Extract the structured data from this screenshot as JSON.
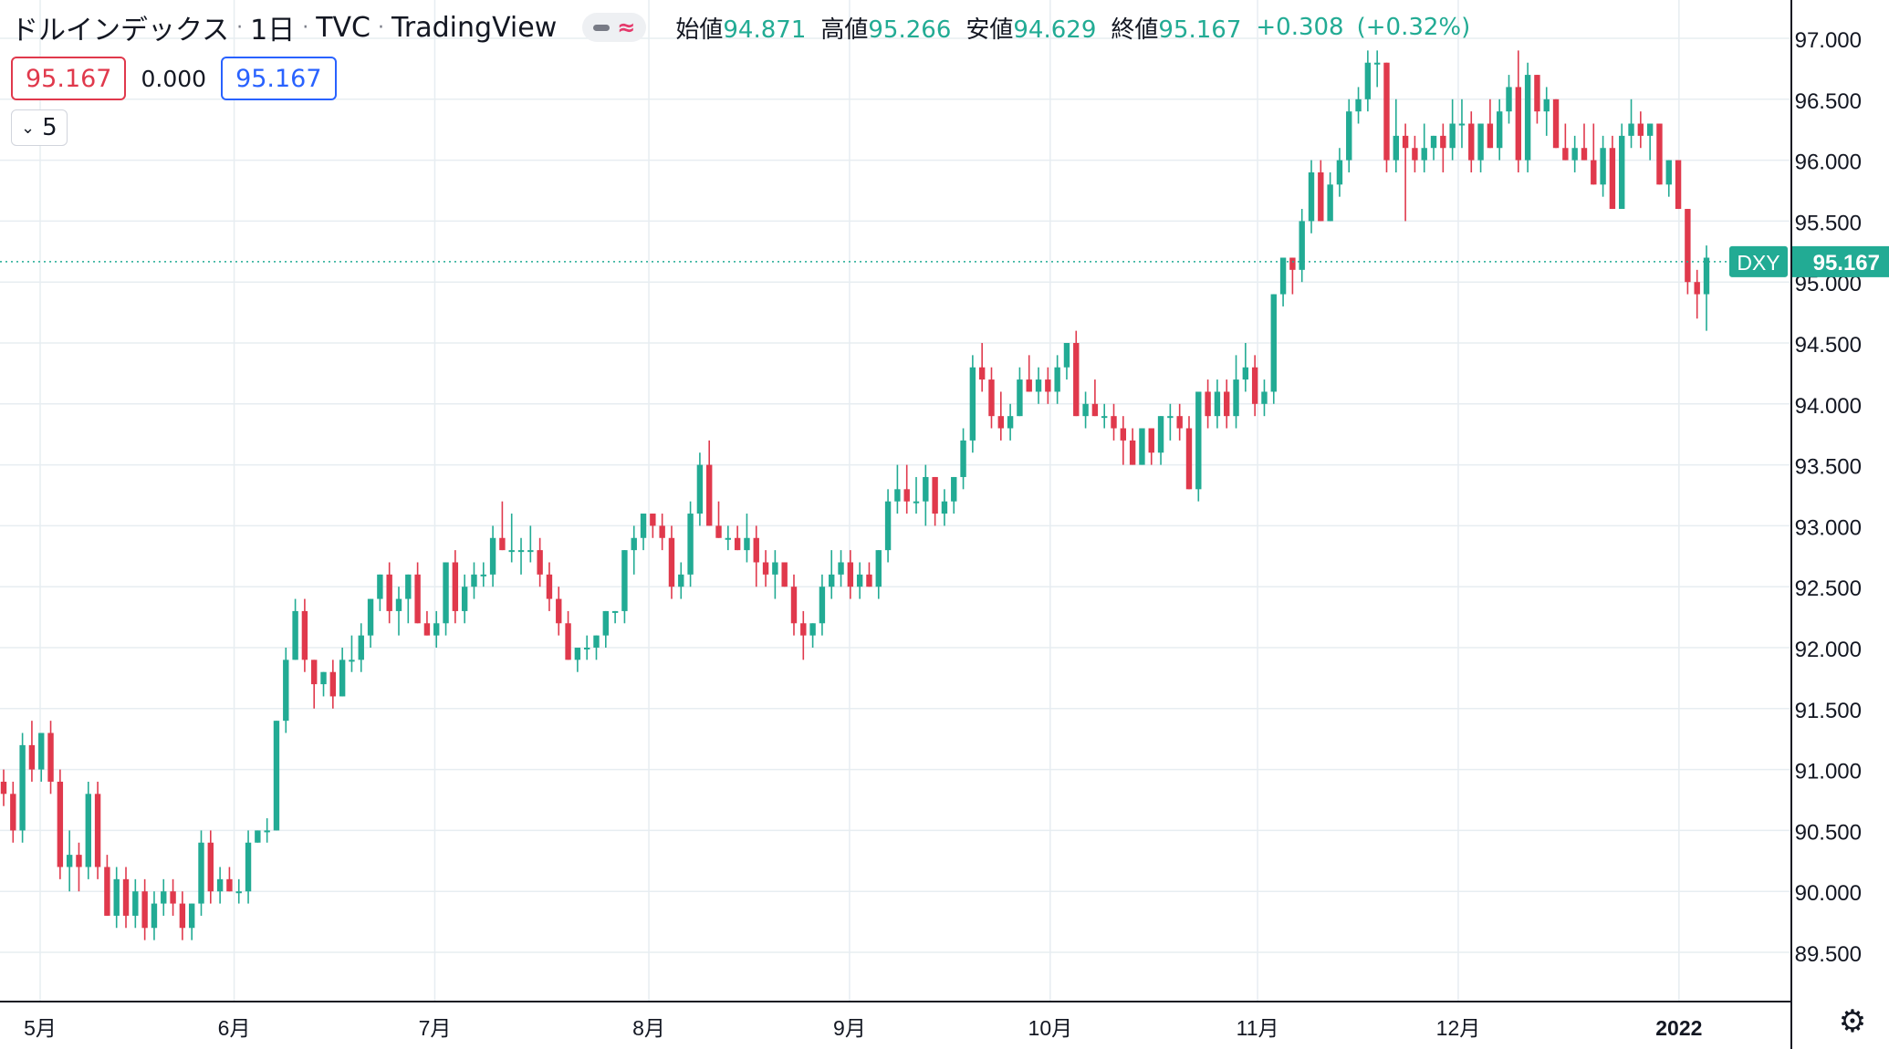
{
  "header": {
    "symbol": "ドルインデックス",
    "interval": "1日",
    "exchange": "TVC",
    "provider": "TradingView",
    "open_label": "始値",
    "open": "94.871",
    "high_label": "高値",
    "high": "95.266",
    "low_label": "安値",
    "low": "94.629",
    "close_label": "終値",
    "close": "95.167",
    "change": "+0.308",
    "change_pct": "(+0.32%)"
  },
  "price_boxes": {
    "sell": "95.167",
    "spread": "0.000",
    "buy": "95.167"
  },
  "indicators_toggle": {
    "count": "5"
  },
  "colors": {
    "up": "#22ab94",
    "down": "#e0394c",
    "grid": "#e7edf1",
    "axis": "#131722",
    "price_line": "#22ab94"
  },
  "icons": {
    "chevron": "chevron-down-icon",
    "settings": "gear-icon",
    "line": "line-style-icon",
    "compare": "approx-icon"
  },
  "chart_data": {
    "type": "candlestick",
    "title": "ドルインデックス · 1日 · TVC",
    "ylim": [
      89.2,
      97.2
    ],
    "y_ticks": [
      "89.500",
      "90.000",
      "90.500",
      "91.000",
      "91.500",
      "92.000",
      "92.500",
      "93.000",
      "93.500",
      "94.000",
      "94.500",
      "95.000",
      "95.500",
      "96.000",
      "96.500",
      "97.000"
    ],
    "x_ticks": [
      {
        "label": "5月",
        "date": "2021-05-03"
      },
      {
        "label": "6月",
        "date": "2021-06-01"
      },
      {
        "label": "7月",
        "date": "2021-07-01"
      },
      {
        "label": "8月",
        "date": "2021-08-02"
      },
      {
        "label": "9月",
        "date": "2021-09-01"
      },
      {
        "label": "10月",
        "date": "2021-10-01"
      },
      {
        "label": "11月",
        "date": "2021-11-01"
      },
      {
        "label": "12月",
        "date": "2021-12-01"
      },
      {
        "label": "2022",
        "date": "2022-01-03"
      }
    ],
    "last_price": {
      "symbol": "DXY",
      "value": 95.167
    },
    "grid": true,
    "ohlc": [
      [
        90.9,
        91.0,
        90.7,
        90.8
      ],
      [
        90.8,
        90.9,
        90.4,
        90.5
      ],
      [
        90.5,
        91.3,
        90.4,
        91.2
      ],
      [
        91.2,
        91.4,
        90.9,
        91.0
      ],
      [
        91.0,
        91.3,
        90.9,
        91.3
      ],
      [
        91.3,
        91.4,
        90.8,
        90.9
      ],
      [
        90.9,
        91.0,
        90.1,
        90.2
      ],
      [
        90.2,
        90.5,
        90.0,
        90.3
      ],
      [
        90.3,
        90.4,
        90.0,
        90.2
      ],
      [
        90.2,
        90.9,
        90.1,
        90.8
      ],
      [
        90.8,
        90.9,
        90.1,
        90.2
      ],
      [
        90.2,
        90.3,
        89.8,
        89.8
      ],
      [
        89.8,
        90.2,
        89.7,
        90.1
      ],
      [
        90.1,
        90.2,
        89.7,
        89.8
      ],
      [
        89.8,
        90.1,
        89.7,
        90.0
      ],
      [
        90.0,
        90.1,
        89.6,
        89.7
      ],
      [
        89.7,
        90.0,
        89.6,
        89.9
      ],
      [
        89.9,
        90.1,
        89.8,
        90.0
      ],
      [
        90.0,
        90.1,
        89.8,
        89.9
      ],
      [
        89.9,
        90.0,
        89.6,
        89.7
      ],
      [
        89.7,
        89.9,
        89.6,
        89.9
      ],
      [
        89.9,
        90.5,
        89.8,
        90.4
      ],
      [
        90.4,
        90.5,
        89.9,
        90.0
      ],
      [
        90.0,
        90.2,
        89.9,
        90.1
      ],
      [
        90.1,
        90.2,
        90.0,
        90.0
      ],
      [
        90.0,
        90.1,
        89.9,
        90.0
      ],
      [
        90.0,
        90.5,
        89.9,
        90.4
      ],
      [
        90.4,
        90.5,
        90.4,
        90.5
      ],
      [
        90.5,
        90.6,
        90.4,
        90.5
      ],
      [
        90.5,
        91.4,
        90.5,
        91.4
      ],
      [
        91.4,
        92.0,
        91.3,
        91.9
      ],
      [
        91.9,
        92.4,
        91.9,
        92.3
      ],
      [
        92.3,
        92.4,
        91.8,
        91.9
      ],
      [
        91.9,
        91.9,
        91.5,
        91.7
      ],
      [
        91.7,
        91.8,
        91.6,
        91.8
      ],
      [
        91.8,
        91.9,
        91.5,
        91.6
      ],
      [
        91.6,
        92.0,
        91.6,
        91.9
      ],
      [
        91.9,
        92.1,
        91.8,
        91.9
      ],
      [
        91.9,
        92.2,
        91.8,
        92.1
      ],
      [
        92.1,
        92.4,
        92.0,
        92.4
      ],
      [
        92.4,
        92.6,
        92.3,
        92.6
      ],
      [
        92.6,
        92.7,
        92.2,
        92.3
      ],
      [
        92.3,
        92.5,
        92.1,
        92.4
      ],
      [
        92.4,
        92.6,
        92.2,
        92.6
      ],
      [
        92.6,
        92.7,
        92.2,
        92.2
      ],
      [
        92.2,
        92.3,
        92.1,
        92.1
      ],
      [
        92.1,
        92.3,
        92.0,
        92.2
      ],
      [
        92.2,
        92.7,
        92.1,
        92.7
      ],
      [
        92.7,
        92.8,
        92.2,
        92.3
      ],
      [
        92.3,
        92.6,
        92.2,
        92.5
      ],
      [
        92.5,
        92.7,
        92.4,
        92.6
      ],
      [
        92.6,
        92.7,
        92.5,
        92.6
      ],
      [
        92.6,
        93.0,
        92.5,
        92.9
      ],
      [
        92.9,
        93.2,
        92.8,
        92.8
      ],
      [
        92.8,
        93.1,
        92.7,
        92.8
      ],
      [
        92.8,
        92.9,
        92.6,
        92.8
      ],
      [
        92.8,
        93.0,
        92.7,
        92.8
      ],
      [
        92.8,
        92.9,
        92.5,
        92.6
      ],
      [
        92.6,
        92.7,
        92.3,
        92.4
      ],
      [
        92.4,
        92.5,
        92.1,
        92.2
      ],
      [
        92.2,
        92.3,
        91.9,
        91.9
      ],
      [
        91.9,
        92.0,
        91.8,
        92.0
      ],
      [
        92.0,
        92.1,
        91.9,
        92.0
      ],
      [
        92.0,
        92.1,
        91.9,
        92.1
      ],
      [
        92.1,
        92.3,
        92.0,
        92.3
      ],
      [
        92.3,
        92.3,
        92.2,
        92.3
      ],
      [
        92.3,
        92.8,
        92.2,
        92.8
      ],
      [
        92.8,
        93.0,
        92.6,
        92.9
      ],
      [
        92.9,
        93.1,
        92.8,
        93.1
      ],
      [
        93.1,
        93.1,
        92.9,
        93.0
      ],
      [
        93.0,
        93.1,
        92.8,
        92.9
      ],
      [
        92.9,
        93.0,
        92.4,
        92.5
      ],
      [
        92.5,
        92.7,
        92.4,
        92.6
      ],
      [
        92.6,
        93.2,
        92.5,
        93.1
      ],
      [
        93.1,
        93.6,
        93.0,
        93.5
      ],
      [
        93.5,
        93.7,
        93.0,
        93.0
      ],
      [
        93.0,
        93.2,
        92.9,
        92.9
      ],
      [
        92.9,
        93.0,
        92.8,
        92.9
      ],
      [
        92.9,
        93.0,
        92.8,
        92.8
      ],
      [
        92.8,
        93.1,
        92.7,
        92.9
      ],
      [
        92.9,
        93.0,
        92.5,
        92.7
      ],
      [
        92.7,
        92.8,
        92.5,
        92.6
      ],
      [
        92.6,
        92.8,
        92.4,
        92.7
      ],
      [
        92.7,
        92.7,
        92.5,
        92.5
      ],
      [
        92.5,
        92.6,
        92.1,
        92.2
      ],
      [
        92.2,
        92.3,
        91.9,
        92.1
      ],
      [
        92.1,
        92.2,
        92.0,
        92.2
      ],
      [
        92.2,
        92.6,
        92.1,
        92.5
      ],
      [
        92.5,
        92.8,
        92.4,
        92.6
      ],
      [
        92.6,
        92.8,
        92.5,
        92.7
      ],
      [
        92.7,
        92.8,
        92.4,
        92.5
      ],
      [
        92.5,
        92.7,
        92.4,
        92.6
      ],
      [
        92.6,
        92.7,
        92.5,
        92.5
      ],
      [
        92.5,
        92.8,
        92.4,
        92.8
      ],
      [
        92.8,
        93.3,
        92.7,
        93.2
      ],
      [
        93.2,
        93.5,
        93.1,
        93.3
      ],
      [
        93.3,
        93.5,
        93.1,
        93.2
      ],
      [
        93.2,
        93.4,
        93.1,
        93.2
      ],
      [
        93.2,
        93.5,
        93.0,
        93.4
      ],
      [
        93.4,
        93.4,
        93.0,
        93.1
      ],
      [
        93.1,
        93.3,
        93.0,
        93.2
      ],
      [
        93.2,
        93.4,
        93.1,
        93.4
      ],
      [
        93.4,
        93.8,
        93.3,
        93.7
      ],
      [
        93.7,
        94.4,
        93.6,
        94.3
      ],
      [
        94.3,
        94.5,
        94.1,
        94.2
      ],
      [
        94.2,
        94.3,
        93.8,
        93.9
      ],
      [
        93.9,
        94.1,
        93.7,
        93.8
      ],
      [
        93.8,
        94.0,
        93.7,
        93.9
      ],
      [
        93.9,
        94.3,
        93.9,
        94.2
      ],
      [
        94.2,
        94.4,
        94.1,
        94.1
      ],
      [
        94.1,
        94.3,
        94.0,
        94.2
      ],
      [
        94.2,
        94.3,
        94.0,
        94.1
      ],
      [
        94.1,
        94.4,
        94.0,
        94.3
      ],
      [
        94.3,
        94.5,
        94.2,
        94.5
      ],
      [
        94.5,
        94.6,
        93.9,
        93.9
      ],
      [
        93.9,
        94.1,
        93.8,
        94.0
      ],
      [
        94.0,
        94.2,
        93.9,
        93.9
      ],
      [
        93.9,
        94.0,
        93.8,
        93.9
      ],
      [
        93.9,
        94.0,
        93.7,
        93.8
      ],
      [
        93.8,
        93.9,
        93.5,
        93.7
      ],
      [
        93.7,
        93.8,
        93.5,
        93.5
      ],
      [
        93.5,
        93.8,
        93.5,
        93.8
      ],
      [
        93.8,
        93.8,
        93.5,
        93.6
      ],
      [
        93.6,
        93.9,
        93.5,
        93.9
      ],
      [
        93.9,
        94.0,
        93.7,
        93.9
      ],
      [
        93.9,
        94.0,
        93.7,
        93.8
      ],
      [
        93.8,
        93.9,
        93.3,
        93.3
      ],
      [
        93.3,
        94.1,
        93.2,
        94.1
      ],
      [
        94.1,
        94.2,
        93.8,
        93.9
      ],
      [
        93.9,
        94.2,
        93.8,
        94.1
      ],
      [
        94.1,
        94.2,
        93.8,
        93.9
      ],
      [
        93.9,
        94.4,
        93.8,
        94.2
      ],
      [
        94.2,
        94.5,
        94.1,
        94.3
      ],
      [
        94.3,
        94.4,
        93.9,
        94.0
      ],
      [
        94.0,
        94.2,
        93.9,
        94.1
      ],
      [
        94.1,
        94.9,
        94.0,
        94.9
      ],
      [
        94.9,
        95.2,
        94.8,
        95.2
      ],
      [
        95.2,
        95.2,
        94.9,
        95.1
      ],
      [
        95.1,
        95.6,
        95.0,
        95.5
      ],
      [
        95.5,
        96.0,
        95.4,
        95.9
      ],
      [
        95.9,
        96.0,
        95.5,
        95.5
      ],
      [
        95.5,
        95.9,
        95.5,
        95.8
      ],
      [
        95.8,
        96.1,
        95.7,
        96.0
      ],
      [
        96.0,
        96.5,
        95.9,
        96.4
      ],
      [
        96.4,
        96.6,
        96.3,
        96.5
      ],
      [
        96.5,
        96.9,
        96.4,
        96.8
      ],
      [
        96.8,
        96.9,
        96.6,
        96.8
      ],
      [
        96.8,
        96.8,
        95.9,
        96.0
      ],
      [
        96.0,
        96.5,
        95.9,
        96.2
      ],
      [
        96.2,
        96.3,
        95.5,
        96.1
      ],
      [
        96.1,
        96.2,
        95.9,
        96.0
      ],
      [
        96.0,
        96.3,
        95.9,
        96.1
      ],
      [
        96.1,
        96.2,
        96.0,
        96.2
      ],
      [
        96.2,
        96.3,
        95.9,
        96.1
      ],
      [
        96.1,
        96.5,
        96.0,
        96.3
      ],
      [
        96.3,
        96.5,
        96.1,
        96.3
      ],
      [
        96.3,
        96.4,
        95.9,
        96.0
      ],
      [
        96.0,
        96.3,
        95.9,
        96.3
      ],
      [
        96.3,
        96.5,
        96.1,
        96.1
      ],
      [
        96.1,
        96.5,
        96.0,
        96.4
      ],
      [
        96.4,
        96.7,
        96.3,
        96.6
      ],
      [
        96.6,
        96.9,
        95.9,
        96.0
      ],
      [
        96.0,
        96.8,
        95.9,
        96.7
      ],
      [
        96.7,
        96.7,
        96.3,
        96.4
      ],
      [
        96.4,
        96.6,
        96.2,
        96.5
      ],
      [
        96.5,
        96.5,
        96.1,
        96.1
      ],
      [
        96.1,
        96.3,
        96.0,
        96.0
      ],
      [
        96.0,
        96.2,
        95.9,
        96.1
      ],
      [
        96.1,
        96.3,
        96.0,
        96.0
      ],
      [
        96.0,
        96.3,
        95.8,
        95.8
      ],
      [
        95.8,
        96.2,
        95.7,
        96.1
      ],
      [
        96.1,
        96.2,
        95.6,
        95.6
      ],
      [
        95.6,
        96.3,
        95.6,
        96.2
      ],
      [
        96.2,
        96.5,
        96.1,
        96.3
      ],
      [
        96.3,
        96.4,
        96.1,
        96.2
      ],
      [
        96.2,
        96.3,
        96.0,
        96.3
      ],
      [
        96.3,
        96.3,
        95.8,
        95.8
      ],
      [
        95.8,
        96.0,
        95.7,
        96.0
      ],
      [
        96.0,
        96.0,
        95.6,
        95.6
      ],
      [
        95.6,
        95.6,
        94.9,
        95.0
      ],
      [
        95.0,
        95.1,
        94.7,
        94.9
      ],
      [
        94.9,
        95.3,
        94.6,
        95.2
      ]
    ]
  }
}
